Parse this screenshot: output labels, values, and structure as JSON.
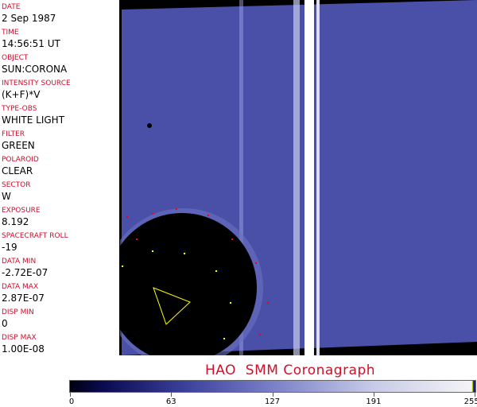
{
  "fields": [
    {
      "label": "DATE",
      "value": "2 Sep 1987"
    },
    {
      "label": "TIME",
      "value": "14:56:51 UT"
    },
    {
      "label": "OBJECT",
      "value": "SUN:CORONA"
    },
    {
      "label": "INTENSITY SOURCE",
      "value": "(K+F)*V"
    },
    {
      "label": "TYPE-OBS",
      "value": "WHITE LIGHT"
    },
    {
      "label": "FILTER",
      "value": "GREEN"
    },
    {
      "label": "POLAROID",
      "value": "CLEAR"
    },
    {
      "label": "SECTOR",
      "value": "W"
    },
    {
      "label": "EXPOSURE",
      "value": "8.192"
    },
    {
      "label": "SPACECRAFT ROLL",
      "value": "-19"
    },
    {
      "label": "DATA MIN",
      "value": "-2.72E-07"
    },
    {
      "label": "DATA MAX",
      "value": "2.87E-07"
    },
    {
      "label": "DISP MIN",
      "value": "0"
    },
    {
      "label": "DISP MAX",
      "value": "1.00E-08"
    }
  ],
  "title": "HAO  SMM Coronagraph",
  "colorbar": {
    "ticks": [
      "0",
      "63",
      "127",
      "191",
      "255"
    ],
    "colors": {
      "low": "#000010",
      "mid": "#7a80c8",
      "high": "#f4f4f6"
    }
  }
}
